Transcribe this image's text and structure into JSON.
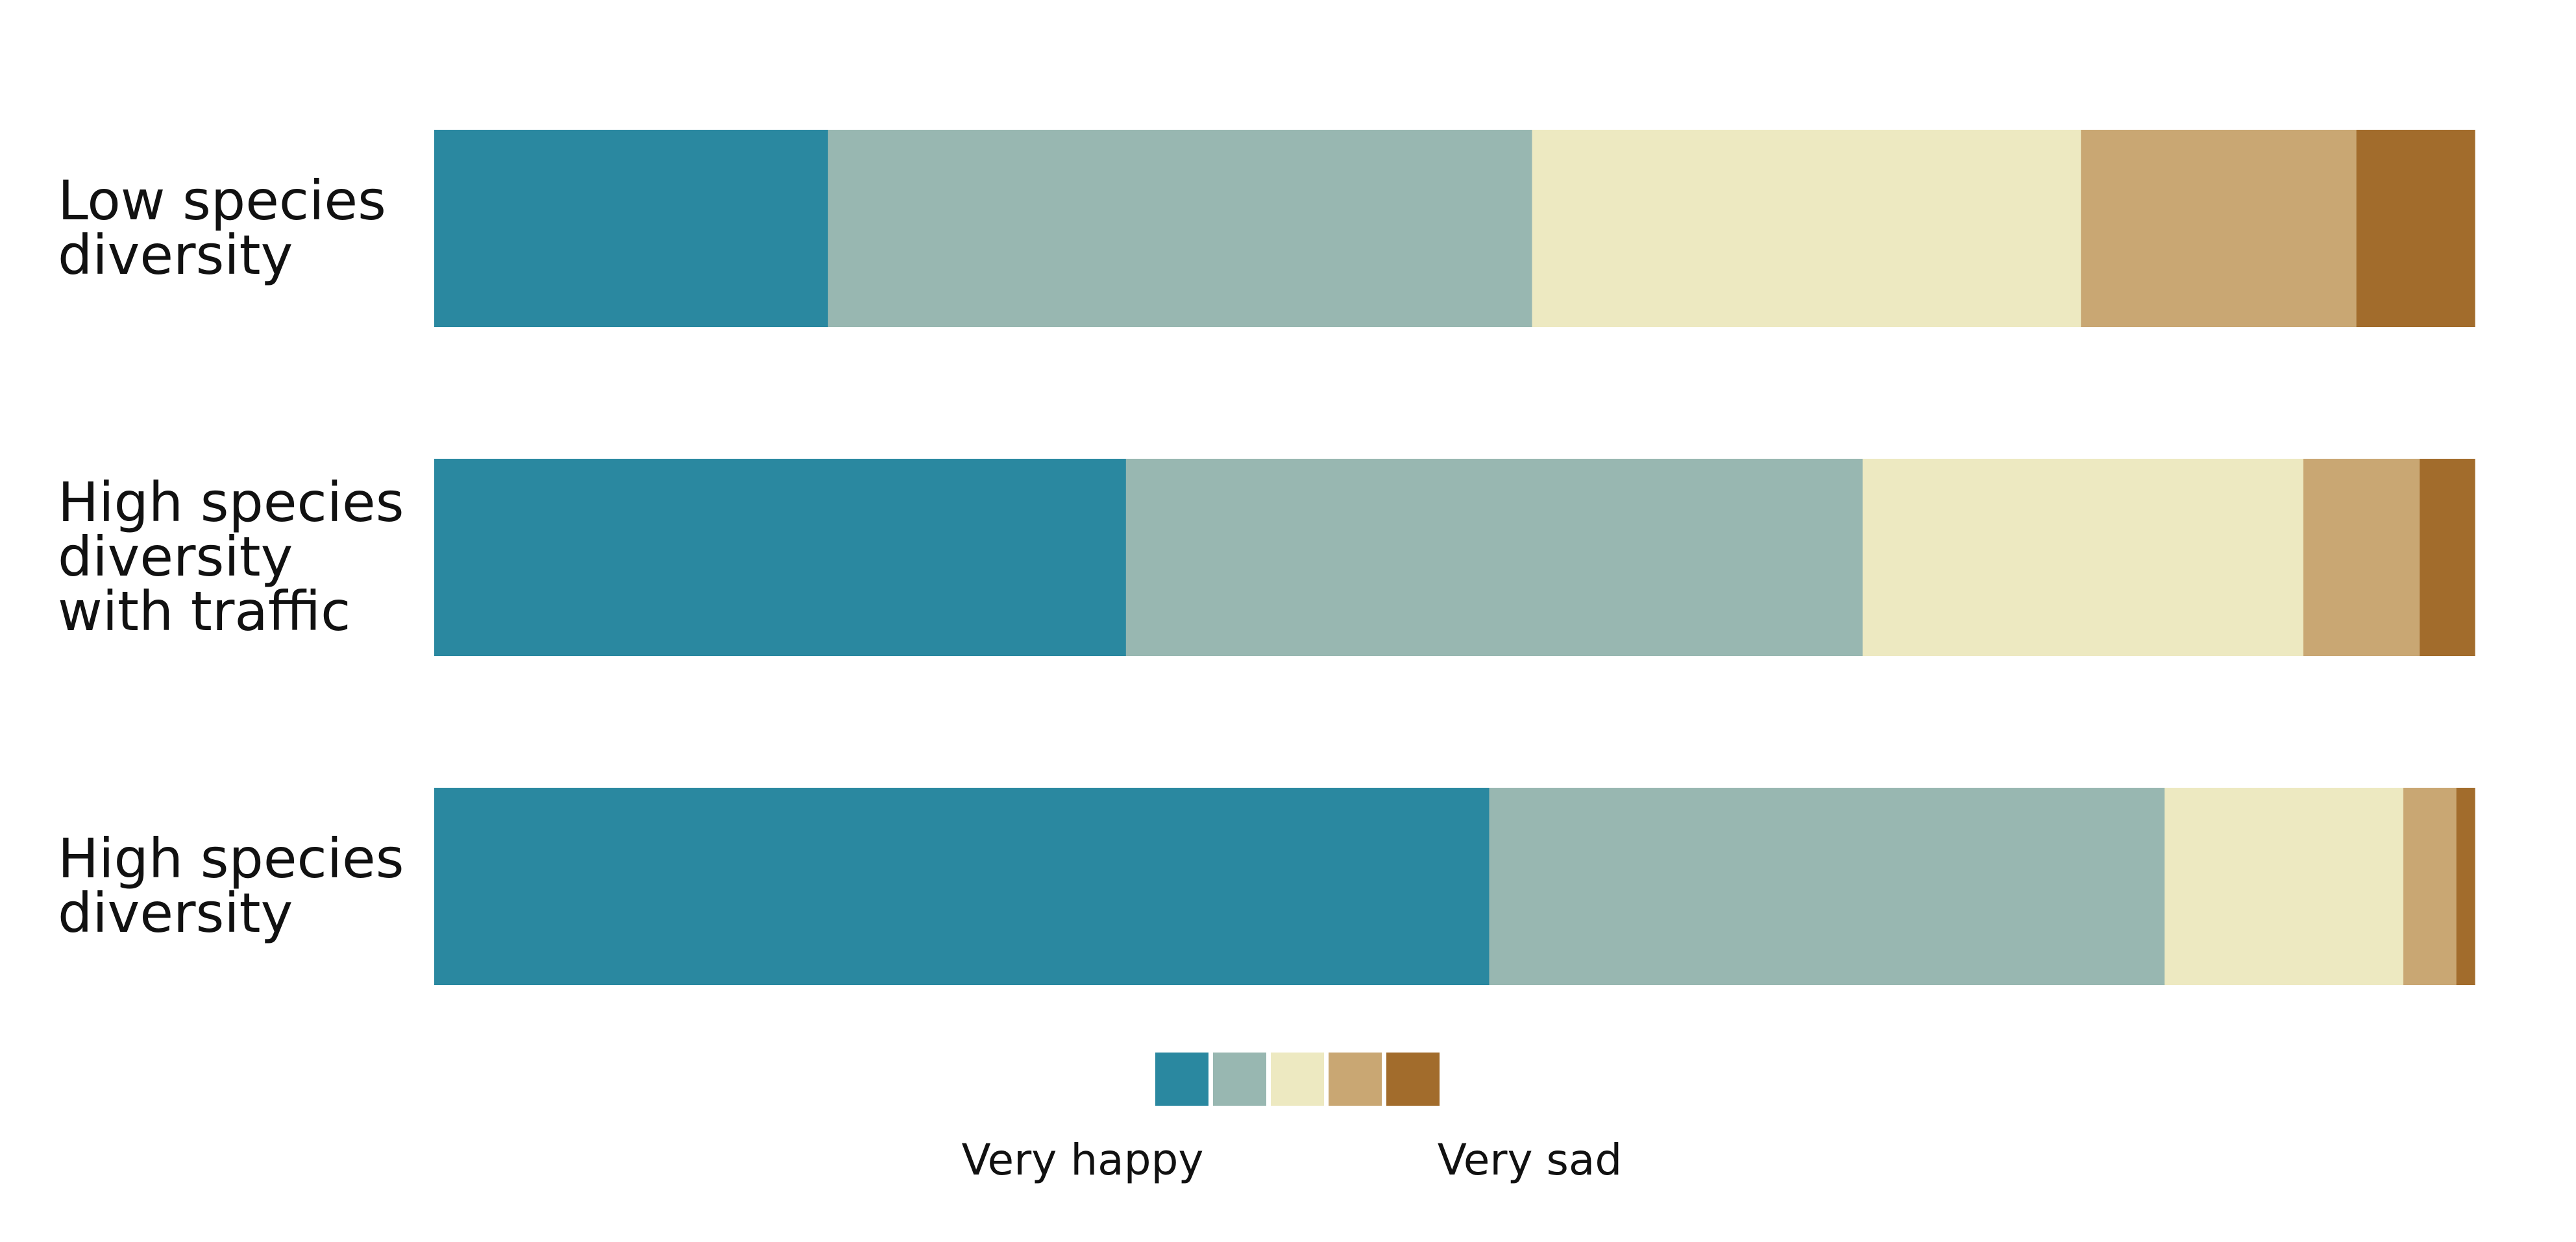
{
  "chart_data": {
    "type": "bar",
    "orientation": "horizontal",
    "stacked": true,
    "normalized": true,
    "categories": [
      [
        "Low species",
        "diversity"
      ],
      [
        "High species",
        "diversity",
        "with traffic"
      ],
      [
        "High species",
        "diversity"
      ]
    ],
    "series": [
      {
        "color": "#2a88a0",
        "values": [
          19.3,
          33.9,
          51.7
        ]
      },
      {
        "color": "#98b7b1",
        "values": [
          34.5,
          36.1,
          33.1
        ]
      },
      {
        "color": "#ede9c1",
        "values": [
          26.9,
          21.6,
          11.7
        ]
      },
      {
        "color": "#c9a773",
        "values": [
          13.5,
          5.7,
          2.6
        ]
      },
      {
        "color": "#a26c2c",
        "values": [
          5.8,
          2.7,
          0.9
        ]
      }
    ],
    "xlim": [
      0,
      100
    ],
    "grid": false,
    "legend": {
      "placement": "bottom-center",
      "low_label": "Very happy",
      "high_label": "Very sad"
    }
  }
}
